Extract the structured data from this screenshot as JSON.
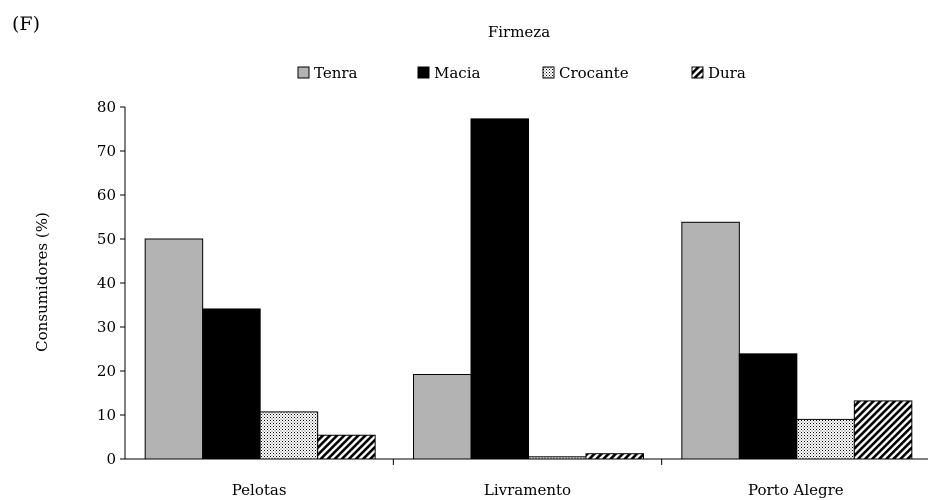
{
  "panel_label": "(F)",
  "chart_data": {
    "type": "bar",
    "title": "Firmeza",
    "xlabel": "",
    "ylabel": "Consumidores (%)",
    "categories": [
      "Pelotas",
      "Livramento",
      "Porto Alegre"
    ],
    "series": [
      {
        "name": "Tenra",
        "values": [
          50,
          19.2,
          53.8
        ],
        "fill": "#b3b3b3",
        "pattern": "solid"
      },
      {
        "name": "Macia",
        "values": [
          34.1,
          77.3,
          23.9
        ],
        "fill": "#000000",
        "pattern": "solid"
      },
      {
        "name": "Crocante",
        "values": [
          10.7,
          0.5,
          9
        ],
        "fill": "#ffffff",
        "pattern": "dots"
      },
      {
        "name": "Dura",
        "values": [
          5.4,
          1.2,
          13.2
        ],
        "fill": "#ffffff",
        "pattern": "hatch"
      }
    ],
    "ylim": [
      0,
      80
    ],
    "yticks": [
      "0",
      "10",
      "20",
      "30",
      "40",
      "50",
      "60",
      "70",
      "80"
    ],
    "legend_position": "top-center",
    "grid": false
  }
}
